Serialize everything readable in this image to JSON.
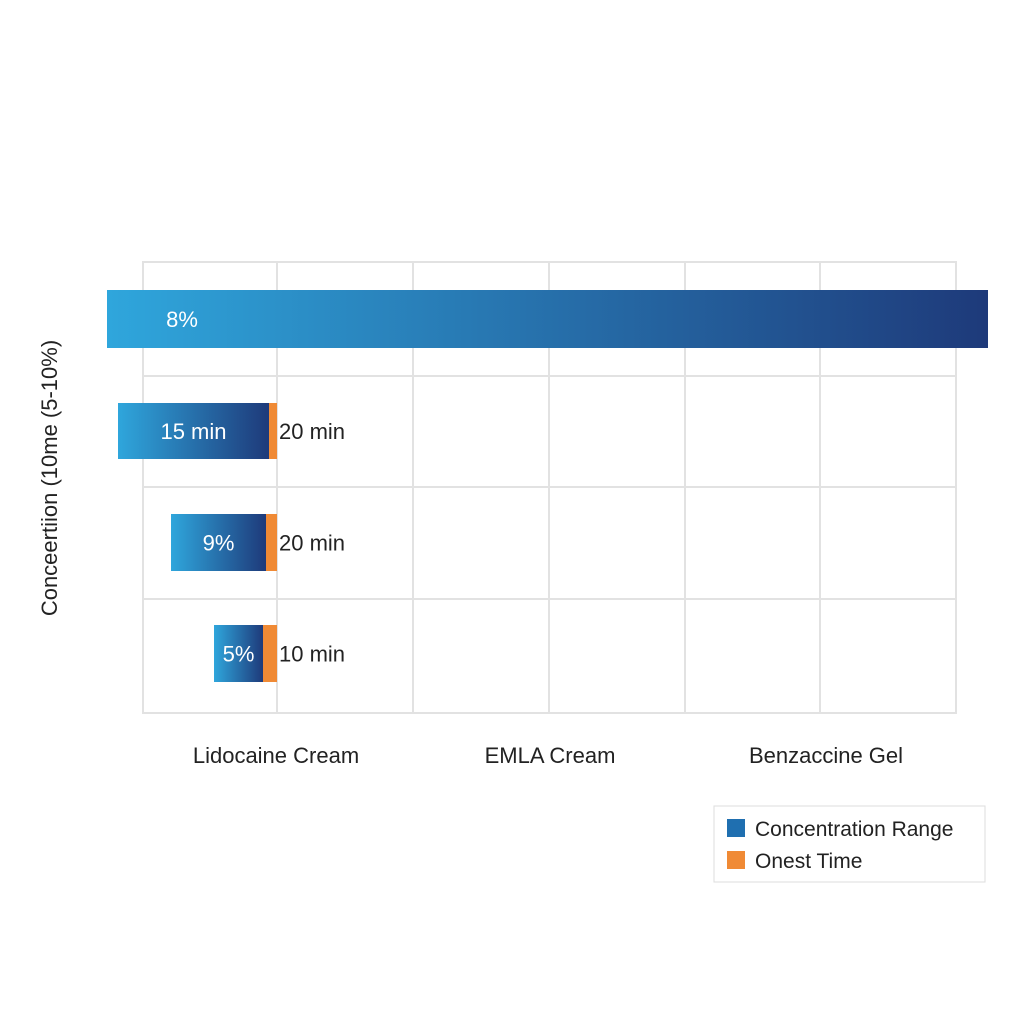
{
  "chart_data": {
    "type": "bar",
    "orientation": "horizontal",
    "title": "",
    "ylabel": "Conceertiion (10me (5-10%)",
    "categories": [
      "Lidocaine Cream",
      "EMLA Cream",
      "Benzaccine Gel"
    ],
    "bars": [
      {
        "label": "8%",
        "end_label": ""
      },
      {
        "label": "15 min",
        "end_label": "20 min"
      },
      {
        "label": "9%",
        "end_label": "20 min"
      },
      {
        "label": "5%",
        "end_label": "10 min"
      }
    ],
    "legend": {
      "placement": "bottom-right",
      "items": [
        {
          "name": "Concentration Range",
          "color": "#1f6fb0"
        },
        {
          "name": "Onest Time",
          "color": "#f08a35"
        }
      ]
    },
    "grid": true,
    "colors": {
      "gradient_start": "#2fa6dc",
      "gradient_end": "#1e3a7a",
      "onset": "#f08a35",
      "grid": "#e2e2e2"
    }
  }
}
